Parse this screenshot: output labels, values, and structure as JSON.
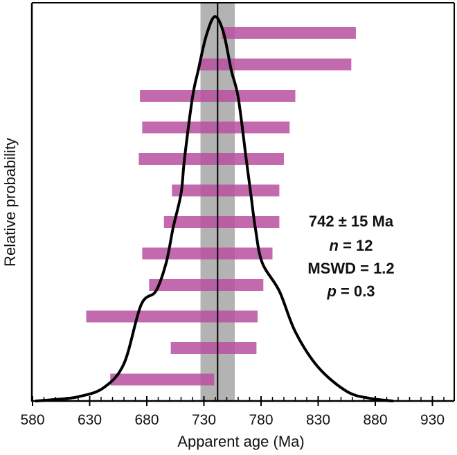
{
  "chart_data": {
    "type": "bar",
    "subtype": "age-probability-plot",
    "title": "",
    "xlabel": "Apparent age (Ma)",
    "ylabel": "Relative probability",
    "xlim": [
      580,
      948
    ],
    "ylim": [
      0,
      1
    ],
    "xticks": [
      580,
      630,
      680,
      730,
      780,
      830,
      880,
      930
    ],
    "xtick_labels": [
      "580",
      "630",
      "680",
      "730",
      "780",
      "830",
      "880",
      "930"
    ],
    "minor_tick_step": 10,
    "grid": false,
    "weighted_mean": {
      "age": 742,
      "error": 15,
      "color": "#b3b3b3",
      "line_color": "#000000"
    },
    "bar_color": "#b84f9f",
    "age_bars": [
      {
        "min": 745.5,
        "max": 863
      },
      {
        "min": 726,
        "max": 859
      },
      {
        "min": 674,
        "max": 810
      },
      {
        "min": 676,
        "max": 805
      },
      {
        "min": 673,
        "max": 800
      },
      {
        "min": 702,
        "max": 796
      },
      {
        "min": 695,
        "max": 796
      },
      {
        "min": 676,
        "max": 790
      },
      {
        "min": 682,
        "max": 782
      },
      {
        "min": 627,
        "max": 777
      },
      {
        "min": 701,
        "max": 776
      },
      {
        "min": 648,
        "max": 739
      }
    ],
    "probability_curve": {
      "x": [
        583,
        600,
        620,
        642,
        660,
        675,
        688,
        697,
        703,
        710,
        713,
        720,
        725,
        732,
        739.5,
        747,
        754,
        760,
        767,
        771,
        775,
        781,
        796,
        810,
        830,
        855,
        875,
        895
      ],
      "y": [
        0,
        0.004,
        0.011,
        0.034,
        0.097,
        0.25,
        0.286,
        0.36,
        0.45,
        0.54,
        0.63,
        0.79,
        0.86,
        0.95,
        1.0,
        0.96,
        0.86,
        0.79,
        0.63,
        0.54,
        0.45,
        0.36,
        0.286,
        0.18,
        0.088,
        0.025,
        0.007,
        0
      ]
    },
    "annotations": {
      "age_line": "742 ± 15 Ma",
      "n_label": "n",
      "n_value": " = 12",
      "mswd_line": "MSWD = 1.2",
      "p_label": "p",
      "p_value": " = 0.3"
    }
  }
}
